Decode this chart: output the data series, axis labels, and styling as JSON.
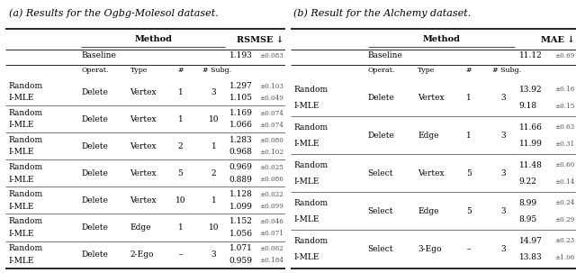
{
  "table_a": {
    "title": "(a) Results for the Ogbg-Molesol dataset.",
    "metric": "RSMSE ↓",
    "baseline_val": "1.193",
    "baseline_err": "±0.083",
    "rows": [
      {
        "m1": "Random",
        "m2": "I-MLE",
        "op": "Delete",
        "tp": "Vertex",
        "n": "1",
        "subg": "3",
        "v1": "1.297",
        "e1": "±0.103",
        "v2": "1.105",
        "e2": "±0.049"
      },
      {
        "m1": "Random",
        "m2": "I-MLE",
        "op": "Delete",
        "tp": "Vertex",
        "n": "1",
        "subg": "10",
        "v1": "1.169",
        "e1": "±0.074",
        "v2": "1.066",
        "e2": "±0.074"
      },
      {
        "m1": "Random",
        "m2": "I-MLE",
        "op": "Delete",
        "tp": "Vertex",
        "n": "2",
        "subg": "1",
        "v1": "1.283",
        "e1": "±0.080",
        "v2": "0.968",
        "e2": "±0.102"
      },
      {
        "m1": "Random",
        "m2": "I-MLE",
        "op": "Delete",
        "tp": "Vertex",
        "n": "5",
        "subg": "2",
        "v1": "0.969",
        "e1": "±0.025",
        "v2": "0.889",
        "e2": "±0.086"
      },
      {
        "m1": "Random",
        "m2": "I-MLE",
        "op": "Delete",
        "tp": "Vertex",
        "n": "10",
        "subg": "1",
        "v1": "1.128",
        "e1": "±0.022",
        "v2": "1.099",
        "e2": "±0.099"
      },
      {
        "m1": "Random",
        "m2": "I-MLE",
        "op": "Delete",
        "tp": "Edge",
        "n": "1",
        "subg": "10",
        "v1": "1.152",
        "e1": "±0.046",
        "v2": "1.056",
        "e2": "±0.071"
      },
      {
        "m1": "Random",
        "m2": "I-MLE",
        "op": "Delete",
        "tp": "2-Ego",
        "n": "–",
        "subg": "3",
        "v1": "1.071",
        "e1": "±0.062",
        "v2": "0.959",
        "e2": "±0.184"
      }
    ]
  },
  "table_b": {
    "title": "(b) Result for the Alchemy dataset.",
    "metric": "MAE ↓",
    "baseline_val": "11.12",
    "baseline_err": "±0.69",
    "rows": [
      {
        "m1": "Random",
        "m2": "I-MLE",
        "op": "Delete",
        "tp": "Vertex",
        "n": "1",
        "subg": "3",
        "v1": "13.92",
        "e1": "±0.16",
        "v2": "9.18",
        "e2": "±0.15"
      },
      {
        "m1": "Random",
        "m2": "I-MLE",
        "op": "Delete",
        "tp": "Edge",
        "n": "1",
        "subg": "3",
        "v1": "11.66",
        "e1": "±0.63",
        "v2": "11.99",
        "e2": "±0.31"
      },
      {
        "m1": "Random",
        "m2": "I-MLE",
        "op": "Select",
        "tp": "Vertex",
        "n": "5",
        "subg": "3",
        "v1": "11.48",
        "e1": "±0.60",
        "v2": "9.22",
        "e2": "±0.14"
      },
      {
        "m1": "Random",
        "m2": "I-MLE",
        "op": "Select",
        "tp": "Edge",
        "n": "5",
        "subg": "3",
        "v1": "8.99",
        "e1": "±0.24",
        "v2": "8.95",
        "e2": "±0.29"
      },
      {
        "m1": "Random",
        "m2": "I-MLE",
        "op": "Select",
        "tp": "3-Ego",
        "n": "–",
        "subg": "3",
        "v1": "14.97",
        "e1": "±0.23",
        "v2": "13.83",
        "e2": "±1.06"
      }
    ]
  }
}
